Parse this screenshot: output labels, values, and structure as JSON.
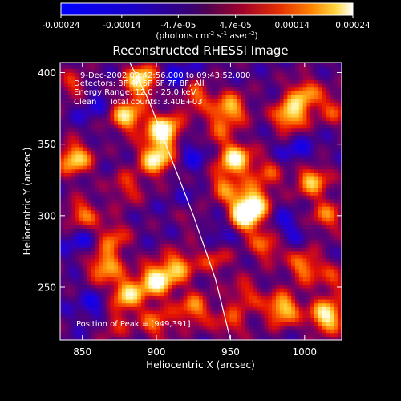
{
  "chart_data": {
    "type": "heatmap",
    "title": "Reconstructed RHESSI Image",
    "xlabel": "Heliocentric X (arcsec)",
    "ylabel": "Heliocentric Y (arcsec)",
    "xlim": [
      835,
      1025
    ],
    "ylim": [
      213,
      407
    ],
    "x_ticks": [
      850,
      900,
      950,
      1000
    ],
    "y_ticks": [
      250,
      300,
      350,
      400
    ],
    "colorbar": {
      "range": [
        -0.00024,
        0.00024
      ],
      "tick_values": [
        -0.00024,
        -0.00014,
        -4.7e-05,
        4.7e-05,
        0.00014,
        0.00024
      ],
      "tick_labels": [
        "-0.00024",
        "-0.00014",
        "-4.7e-05",
        "4.7e-05",
        "0.00014",
        "0.00024"
      ],
      "units_label": "(photons cm",
      "units_exp1": "-2",
      "units_mid": " s",
      "units_exp2": "-1",
      "units_mid2": " asec",
      "units_exp3": "-2",
      "units_end": ")"
    },
    "annotations": [
      "9-Dec-2002 09:42:56.000 to 09:43:52.000",
      "Detectors: 3F 4F 5F 6F 7F 8F, All",
      "Energy Range: 12.0 - 25.0 keV",
      "Clean     Total counts: 3.40E+03",
      "Position of Peak = [949,391]"
    ],
    "limb_curve": [
      [
        882,
        407
      ],
      [
        895,
        380
      ],
      [
        910,
        340
      ],
      [
        925,
        300
      ],
      [
        940,
        255
      ],
      [
        950,
        213
      ]
    ],
    "peak": [
      949,
      391
    ],
    "grid": false,
    "colors": {
      "low": "#0000ff",
      "mid": "#500050",
      "high": "#ffffff",
      "background": "#000000",
      "axes": "#ffffff"
    },
    "blobs": [
      {
        "x": 905,
        "y": 360,
        "v": 1.0
      },
      {
        "x": 900,
        "y": 340,
        "v": 0.9
      },
      {
        "x": 880,
        "y": 370,
        "v": 0.8
      },
      {
        "x": 890,
        "y": 395,
        "v": 0.9
      },
      {
        "x": 925,
        "y": 385,
        "v": 0.6
      },
      {
        "x": 950,
        "y": 375,
        "v": 0.7
      },
      {
        "x": 953,
        "y": 340,
        "v": 0.9
      },
      {
        "x": 945,
        "y": 320,
        "v": 0.5
      },
      {
        "x": 965,
        "y": 310,
        "v": 0.7
      },
      {
        "x": 960,
        "y": 300,
        "v": 1.0
      },
      {
        "x": 975,
        "y": 280,
        "v": 0.6
      },
      {
        "x": 990,
        "y": 370,
        "v": 0.8
      },
      {
        "x": 1000,
        "y": 385,
        "v": 0.6
      },
      {
        "x": 1005,
        "y": 325,
        "v": 0.7
      },
      {
        "x": 1000,
        "y": 265,
        "v": 0.6
      },
      {
        "x": 985,
        "y": 235,
        "v": 0.8
      },
      {
        "x": 1015,
        "y": 230,
        "v": 0.9
      },
      {
        "x": 1015,
        "y": 300,
        "v": 0.5
      },
      {
        "x": 845,
        "y": 340,
        "v": 0.8
      },
      {
        "x": 850,
        "y": 300,
        "v": 0.6
      },
      {
        "x": 870,
        "y": 285,
        "v": 0.5
      },
      {
        "x": 865,
        "y": 265,
        "v": 0.7
      },
      {
        "x": 880,
        "y": 245,
        "v": 0.8
      },
      {
        "x": 900,
        "y": 255,
        "v": 0.9
      },
      {
        "x": 915,
        "y": 265,
        "v": 0.6
      },
      {
        "x": 925,
        "y": 235,
        "v": 0.6
      },
      {
        "x": 900,
        "y": 225,
        "v": 0.5
      },
      {
        "x": 940,
        "y": 270,
        "v": 0.4
      },
      {
        "x": 960,
        "y": 245,
        "v": 0.4
      },
      {
        "x": 975,
        "y": 330,
        "v": 0.4
      },
      {
        "x": 845,
        "y": 390,
        "v": 0.45
      },
      {
        "x": 925,
        "y": 300,
        "v": 0.45
      },
      {
        "x": 880,
        "y": 320,
        "v": 0.4
      },
      {
        "x": 1020,
        "y": 375,
        "v": 0.4
      },
      {
        "x": 950,
        "y": 225,
        "v": 0.4
      },
      {
        "x": 870,
        "y": 225,
        "v": 0.4
      },
      {
        "x": 1020,
        "y": 255,
        "v": 0.35
      },
      {
        "x": 940,
        "y": 360,
        "v": 0.35
      }
    ],
    "voids": [
      {
        "x": 915,
        "y": 395,
        "v": 0.35
      },
      {
        "x": 925,
        "y": 305,
        "v": 0.3
      },
      {
        "x": 860,
        "y": 235,
        "v": 0.3
      },
      {
        "x": 945,
        "y": 290,
        "v": 0.25
      },
      {
        "x": 985,
        "y": 290,
        "v": 0.3
      },
      {
        "x": 925,
        "y": 345,
        "v": 0.25
      },
      {
        "x": 855,
        "y": 380,
        "v": 0.25
      },
      {
        "x": 850,
        "y": 285,
        "v": 0.3
      },
      {
        "x": 995,
        "y": 345,
        "v": 0.25
      }
    ]
  }
}
